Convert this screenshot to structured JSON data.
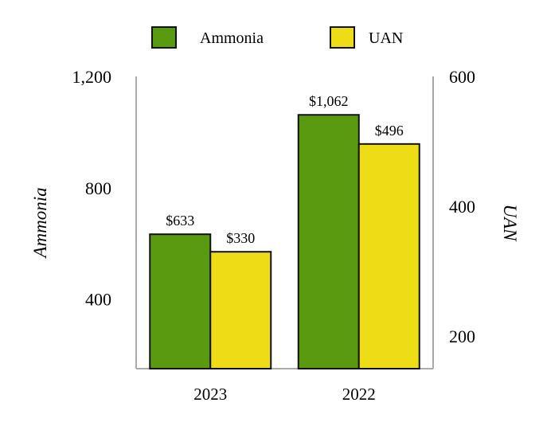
{
  "chart_data": {
    "type": "bar",
    "categories": [
      "2023",
      "2022"
    ],
    "series": [
      {
        "name": "Ammonia",
        "axis": "left",
        "color": "#5a9a10",
        "values": [
          633,
          1062
        ],
        "labels": [
          "$633",
          "$1,062"
        ]
      },
      {
        "name": "UAN",
        "axis": "right",
        "color": "#eedd16",
        "values": [
          330,
          496
        ],
        "labels": [
          "$330",
          "$496"
        ]
      }
    ],
    "y_left": {
      "label": "Ammonia",
      "ticks": [
        "400",
        "800",
        "1,200"
      ],
      "tick_values": [
        400,
        800,
        1200
      ],
      "ylim": [
        150,
        1200
      ]
    },
    "y_right": {
      "label": "UAN",
      "ticks": [
        "200",
        "400",
        "600"
      ],
      "tick_values": [
        200,
        400,
        600
      ],
      "ylim": [
        150,
        600
      ]
    },
    "legend": "top-center",
    "grid": false
  }
}
